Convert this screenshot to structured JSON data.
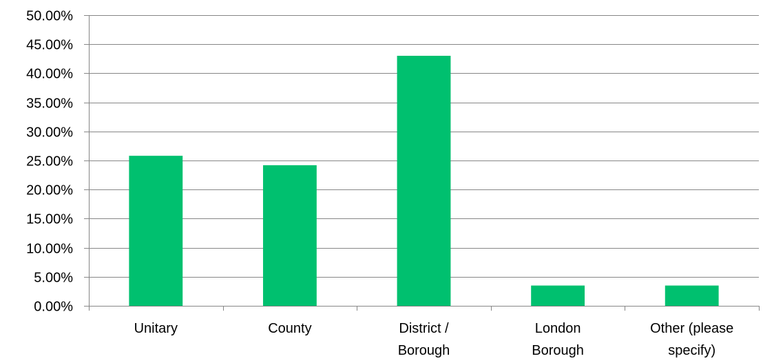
{
  "chart_data": {
    "type": "bar",
    "title": "",
    "xlabel": "",
    "ylabel": "",
    "categories": [
      [
        "Unitary"
      ],
      [
        "County"
      ],
      [
        "District /",
        "Borough"
      ],
      [
        "London",
        "Borough"
      ],
      [
        "Other (please",
        "specify)"
      ]
    ],
    "values": [
      25.81,
      24.19,
      43.01,
      3.49,
      3.49
    ],
    "ylim": [
      0,
      50
    ],
    "yticks": [
      "0.00%",
      "5.00%",
      "10.00%",
      "15.00%",
      "20.00%",
      "25.00%",
      "30.00%",
      "35.00%",
      "40.00%",
      "45.00%",
      "50.00%"
    ],
    "grid": true,
    "legend": "none",
    "colors": {
      "bar": "#00c06f",
      "grid": "#868686",
      "axis": "#868686",
      "text": "#000000"
    }
  }
}
